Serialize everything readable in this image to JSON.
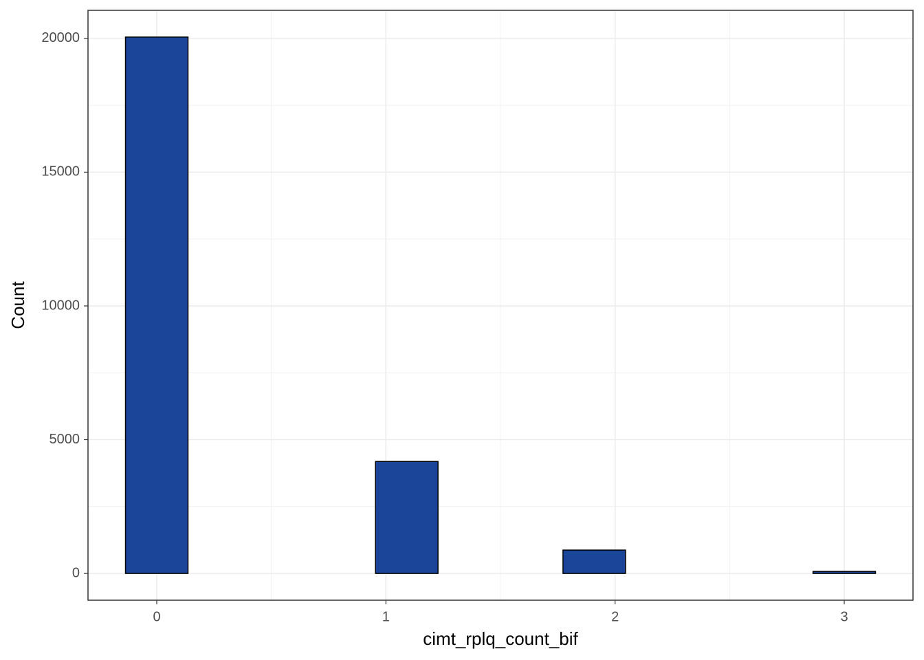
{
  "chart_data": {
    "type": "histogram",
    "xlabel": "cimt_rplq_count_bif",
    "ylabel": "Count",
    "bins": [
      -0.1364,
      0.1364,
      0.4091,
      0.6818,
      0.9545,
      1.2273,
      1.5,
      1.7727,
      2.0455,
      2.3182,
      2.5909,
      2.8636,
      3.1364
    ],
    "values": [
      20050,
      0,
      0,
      0,
      4185,
      0,
      0,
      873,
      0,
      0,
      0,
      75
    ],
    "color": "#1a4599",
    "xlim": [
      -0.3,
      3.3
    ],
    "xticks": [
      0,
      1,
      2,
      3
    ],
    "ylim": [
      -1000,
      21050
    ],
    "yticks": [
      0,
      5000,
      10000,
      15000,
      20000
    ],
    "grid": true
  }
}
